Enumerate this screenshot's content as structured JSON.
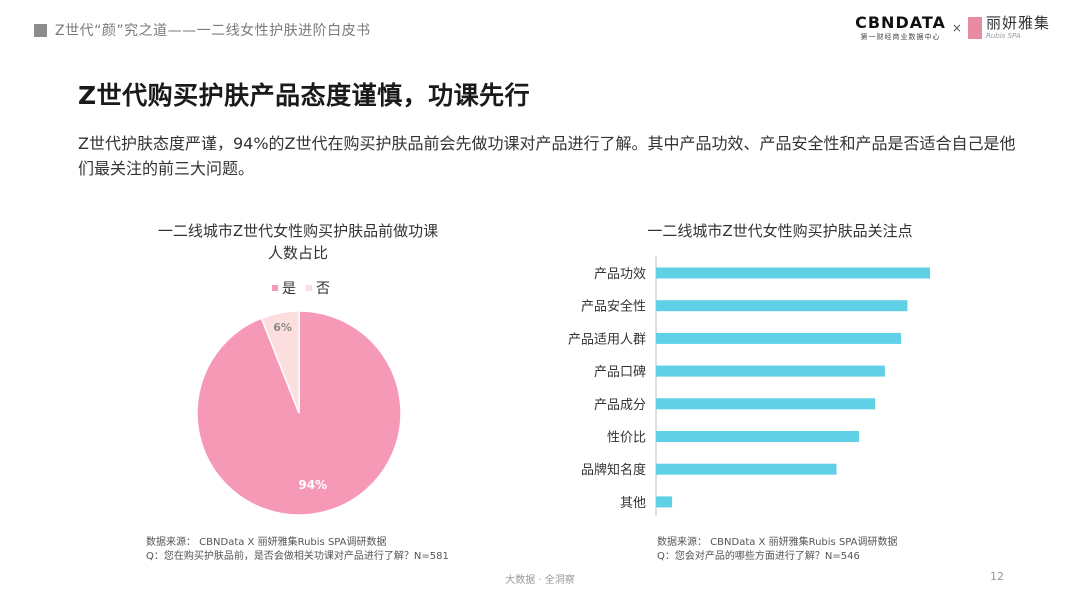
{
  "header": {
    "crumb": "Z世代“颜”究之道——一二线女性护肤进阶白皮书"
  },
  "brand": {
    "cbn_name": "CBNDATA",
    "cbn_sub": "第一财经商业数据中心",
    "x": "×",
    "partner_name": "丽妍雅集",
    "partner_sub": "Rubis SPA"
  },
  "page": {
    "title": "Z世代购买护肤产品态度谨慎，功课先行",
    "desc": "Z世代护肤态度严谨，94%的Z世代在购买护肤品前会先做功课对产品进行了解。其中产品功效、产品安全性和产品是否适合自己是他们最关注的前三大问题。"
  },
  "pie": {
    "title_line1": "一二线城市Z世代女性购买护肤品前做功课",
    "title_line2": "人数占比",
    "legend_yes": "是",
    "legend_no": "否",
    "note_source": "数据来源： CBNData X 丽妍雅集Rubis  SPA调研数据",
    "note_question": "Q：您在购买护肤品前，是否会做相关功课对产品进行了解？N=581"
  },
  "bar": {
    "title": "一二线城市Z世代女性购买护肤品关注点",
    "note_source": "数据来源： CBNData X 丽妍雅集Rubis  SPA调研数据",
    "note_question": "Q：您会对产品的哪些方面进行了解？N=546"
  },
  "footer": {
    "center": "大数据 · 全洞察",
    "page_number": "12"
  },
  "colors": {
    "pie_yes": "#f599b6",
    "pie_no": "#fcdede",
    "bar": "#5fd0e6"
  },
  "chart_data": [
    {
      "type": "pie",
      "title": "一二线城市Z世代女性购买护肤品前做功课人数占比",
      "categories": [
        "是",
        "否"
      ],
      "values": [
        94,
        6
      ],
      "labels": [
        "94%",
        "6%"
      ],
      "legend": "top"
    },
    {
      "type": "bar",
      "orientation": "horizontal",
      "title": "一二线城市Z世代女性购买护肤品关注点",
      "categories": [
        "产品功效",
        "产品安全性",
        "产品适用人群",
        "产品口碑",
        "产品成分",
        "性价比",
        "品牌知名度",
        "其他"
      ],
      "values": [
        85,
        78,
        76,
        71,
        68,
        63,
        56,
        5
      ],
      "grid": false
    }
  ]
}
